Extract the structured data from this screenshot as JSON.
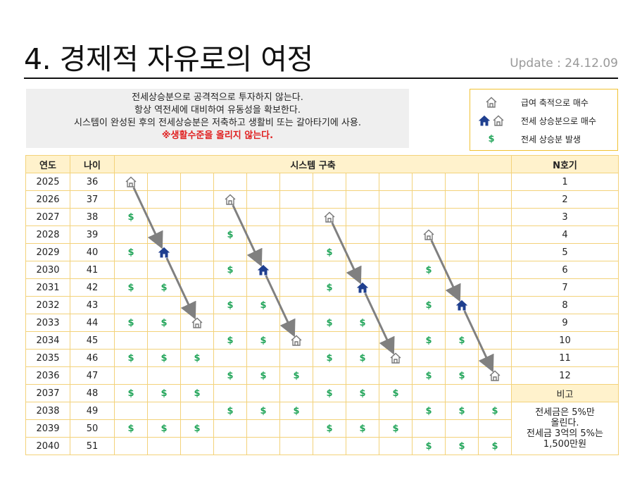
{
  "header": {
    "title": "4. 경제적 자유로의 여정",
    "update": "Update : 24.12.09"
  },
  "note": {
    "line1": "전세상승분으로 공격적으로 투자하지 않는다.",
    "line2": "항상 역전세에 대비하여 유동성을 확보한다.",
    "line3": "시스템이 완성된 후의 전세상승분은 저축하고 생활비 또는 갈아타기에 사용.",
    "line4": "※생활수준을 올리지 않는다."
  },
  "legend": {
    "item1": "급여 축적으로 매수",
    "item2": "전세 상승분으로 매수",
    "item3": "전세 상승분 발생",
    "dollar_symbol": "$"
  },
  "colors": {
    "house_outline": "#777777",
    "house_filled": "#1f3f8f",
    "dollar": "#22a55a",
    "arrow": "#808080",
    "accent_red": "#e02020"
  },
  "table": {
    "headers": {
      "year": "연도",
      "age": "나이",
      "system": "시스템 구축",
      "n": "N호기"
    },
    "symbol_dollar": "$",
    "rows": [
      {
        "year": "2025",
        "age": "36",
        "n": "1"
      },
      {
        "year": "2026",
        "age": "37",
        "n": "2"
      },
      {
        "year": "2027",
        "age": "38",
        "n": "3"
      },
      {
        "year": "2028",
        "age": "39",
        "n": "4"
      },
      {
        "year": "2029",
        "age": "40",
        "n": "5"
      },
      {
        "year": "2030",
        "age": "41",
        "n": "6"
      },
      {
        "year": "2031",
        "age": "42",
        "n": "7"
      },
      {
        "year": "2032",
        "age": "43",
        "n": "8"
      },
      {
        "year": "2033",
        "age": "44",
        "n": "9"
      },
      {
        "year": "2034",
        "age": "45",
        "n": "10"
      },
      {
        "year": "2035",
        "age": "46",
        "n": "11"
      },
      {
        "year": "2036",
        "age": "47",
        "n": "12"
      },
      {
        "year": "2037",
        "age": "48",
        "n": "비고"
      },
      {
        "year": "2038",
        "age": "49",
        "n": ""
      },
      {
        "year": "2039",
        "age": "50",
        "n": ""
      },
      {
        "year": "2040",
        "age": "51",
        "n": ""
      }
    ],
    "grid": [
      [
        "H",
        "",
        "",
        "",
        "",
        "",
        "",
        "",
        "",
        "",
        "",
        ""
      ],
      [
        "",
        "",
        "",
        "H",
        "",
        "",
        "",
        "",
        "",
        "",
        "",
        ""
      ],
      [
        "$",
        "",
        "",
        "",
        "",
        "",
        "H",
        "",
        "",
        "",
        "",
        ""
      ],
      [
        "",
        "",
        "",
        "$",
        "",
        "",
        "",
        "",
        "",
        "H",
        "",
        ""
      ],
      [
        "$",
        "B",
        "",
        "",
        "",
        "",
        "$",
        "",
        "",
        "",
        "",
        ""
      ],
      [
        "",
        "",
        "",
        "$",
        "B",
        "",
        "",
        "",
        "",
        "$",
        "",
        ""
      ],
      [
        "$",
        "$",
        "",
        "",
        "",
        "",
        "$",
        "B",
        "",
        "",
        "",
        ""
      ],
      [
        "",
        "",
        "",
        "$",
        "$",
        "",
        "",
        "",
        "",
        "$",
        "B",
        ""
      ],
      [
        "$",
        "$",
        "H",
        "",
        "",
        "",
        "$",
        "$",
        "",
        "",
        "",
        ""
      ],
      [
        "",
        "",
        "",
        "$",
        "$",
        "H",
        "",
        "",
        "",
        "$",
        "$",
        ""
      ],
      [
        "$",
        "$",
        "$",
        "",
        "",
        "",
        "$",
        "$",
        "H",
        "",
        "",
        ""
      ],
      [
        "",
        "",
        "",
        "$",
        "$",
        "$",
        "",
        "",
        "",
        "$",
        "$",
        "H"
      ],
      [
        "$",
        "$",
        "$",
        "",
        "",
        "",
        "$",
        "$",
        "$",
        "",
        "",
        ""
      ],
      [
        "",
        "",
        "",
        "$",
        "$",
        "$",
        "",
        "",
        "",
        "$",
        "$",
        "$"
      ],
      [
        "$",
        "$",
        "$",
        "",
        "",
        "",
        "$",
        "$",
        "$",
        "",
        "",
        ""
      ],
      [
        "",
        "",
        "",
        "",
        "",
        "",
        "",
        "",
        "",
        "$",
        "$",
        "$"
      ]
    ],
    "memo": {
      "line1": "전세금은 5%만",
      "line2": "올린다.",
      "line3": "전세금 3억의 5%는",
      "line4": "1,500만원"
    }
  }
}
